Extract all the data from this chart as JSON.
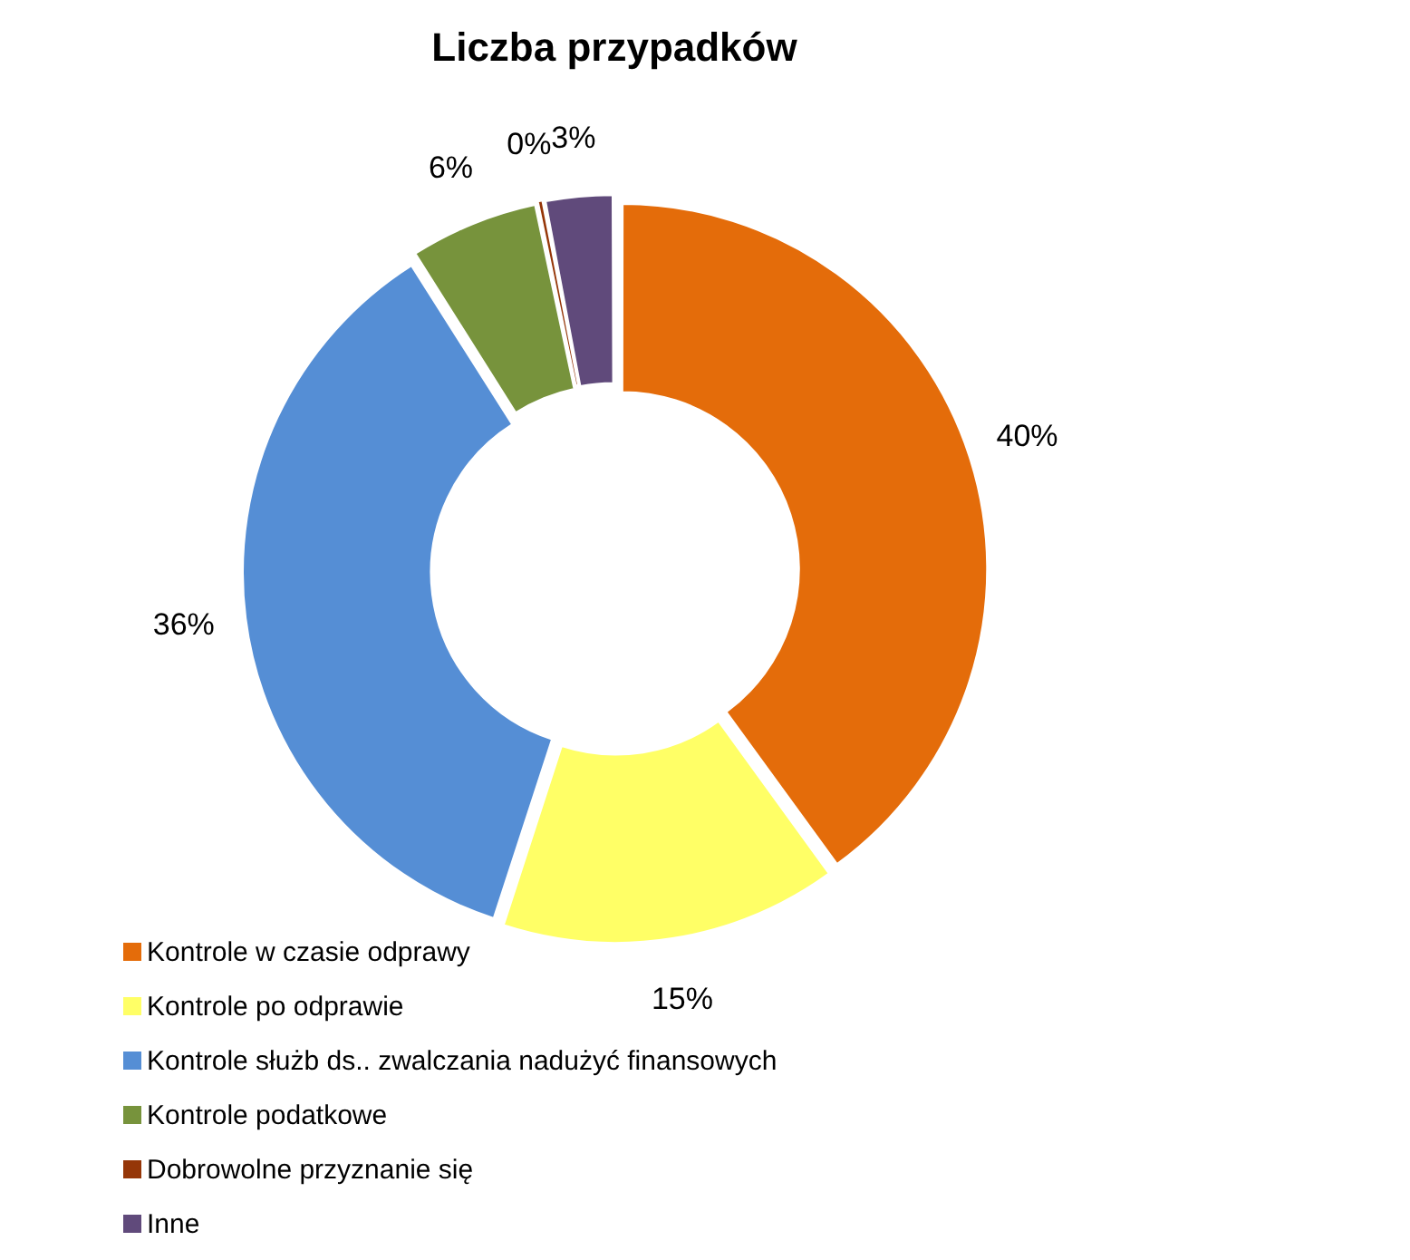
{
  "chart_data": {
    "type": "donut",
    "title": "Liczba przypadków",
    "categories": [
      "Kontrole w czasie odprawy",
      "Kontrole po odprawie",
      "Kontrole służb ds.. zwalczania nadużyć finansowych",
      "Kontrole podatkowe",
      "Dobrowolne przyznanie się",
      "Inne"
    ],
    "values": [
      40,
      15,
      36,
      5.7,
      0.3,
      3
    ],
    "value_labels": [
      "40%",
      "15%",
      "36%",
      "6%",
      "0%",
      "3%"
    ],
    "colors": [
      "#e46c0a",
      "#ffff66",
      "#558ed5",
      "#77933c",
      "#953608",
      "#604a7b"
    ],
    "legend": "bottom left"
  }
}
